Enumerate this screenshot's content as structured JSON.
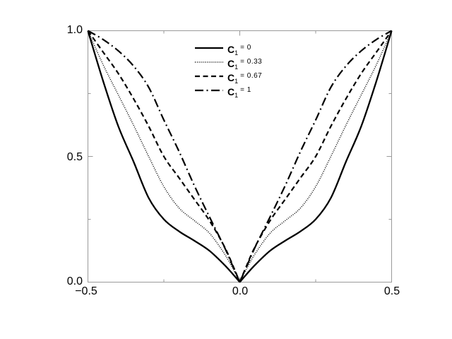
{
  "figure": {
    "background": "#ffffff",
    "frame_color": "#9a9a9a",
    "curve_color": "#000000",
    "label_color": "#000000"
  },
  "legend": {
    "items": [
      {
        "sym": "C",
        "sub": "1",
        "val": "= 0"
      },
      {
        "sym": "C",
        "sub": "1",
        "val": "= 0.33"
      },
      {
        "sym": "C",
        "sub": "1",
        "val": "= 0.67"
      },
      {
        "sym": "C",
        "sub": "1",
        "val": "= 1"
      }
    ]
  },
  "chart_data": {
    "type": "line",
    "title": "",
    "xlabel": "",
    "ylabel": "",
    "xlim": [
      -0.5,
      0.5
    ],
    "ylim": [
      0,
      1
    ],
    "grid": false,
    "legend_position": "upper-middle-left",
    "x_ticks": [
      {
        "v": -0.5,
        "label": "−0.5"
      },
      {
        "v": 0,
        "label": "0.0"
      },
      {
        "v": 0.5,
        "label": "0.5"
      }
    ],
    "y_ticks": [
      {
        "v": 0,
        "label": "0.0"
      },
      {
        "v": 0.5,
        "label": "0.5"
      },
      {
        "v": 1,
        "label": "1.0"
      }
    ],
    "x_minor_ticks": [
      -0.25,
      0.25
    ],
    "y_minor_ticks": [
      0.25,
      0.75
    ],
    "symmetry": "even functions: y(-x)=y(x), cusp at x=0, all curves span (-0.5,1)-(0,0)-(0.5,1)",
    "x_left": [
      -0.5,
      -0.45,
      -0.4,
      -0.35,
      -0.3,
      -0.25,
      -0.2,
      -0.15,
      -0.1,
      -0.05,
      -0.02,
      0
    ],
    "series": [
      {
        "name": "C1 = 0",
        "key": "c1-0",
        "line_style": "solid",
        "dash": [],
        "width": 2.3,
        "y_left": [
          1.0,
          0.8,
          0.62,
          0.48,
          0.335,
          0.25,
          0.202,
          0.165,
          0.125,
          0.068,
          0.028,
          0
        ]
      },
      {
        "name": "C1 = 0.33",
        "key": "c1-0-33",
        "line_style": "dotted",
        "dash": [
          1,
          1.8
        ],
        "width": 1.5,
        "y_left": [
          1.0,
          0.865,
          0.745,
          0.625,
          0.5,
          0.38,
          0.295,
          0.245,
          0.195,
          0.112,
          0.048,
          0
        ]
      },
      {
        "name": "C1 = 0.67",
        "key": "c1-0-67",
        "line_style": "dashed",
        "dash": [
          7,
          4.5
        ],
        "width": 2.2,
        "y_left": [
          1.0,
          0.915,
          0.83,
          0.73,
          0.62,
          0.5,
          0.415,
          0.33,
          0.245,
          0.14,
          0.058,
          0
        ]
      },
      {
        "name": "C1 = 1",
        "key": "c1-1",
        "line_style": "dash-dot",
        "dash": [
          12,
          4.5,
          2,
          4.5
        ],
        "width": 2.2,
        "y_left": [
          1.0,
          0.965,
          0.92,
          0.86,
          0.775,
          0.645,
          0.52,
          0.385,
          0.26,
          0.138,
          0.055,
          0
        ]
      }
    ]
  }
}
